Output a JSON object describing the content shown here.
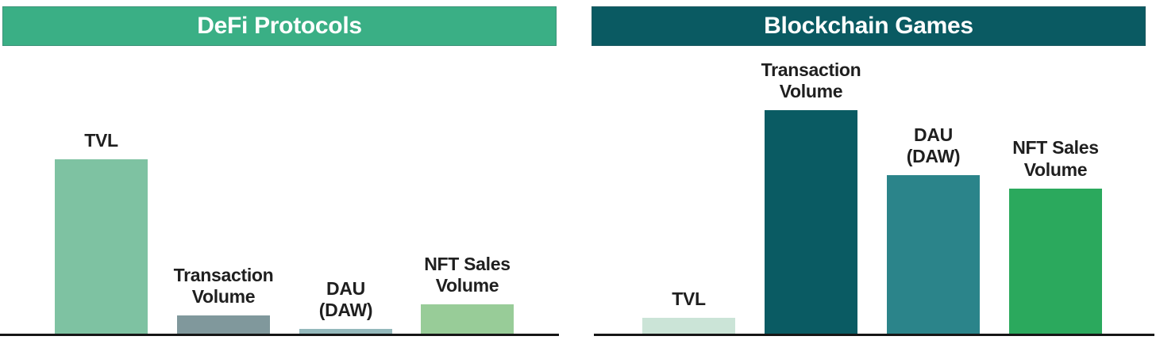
{
  "page": {
    "background": "#ffffff",
    "axis_line_color": "#161616",
    "label_text_color": "#1f1f1f"
  },
  "chart_data": [
    {
      "type": "bar",
      "title": "DeFi Protocols",
      "title_band_bg": "#3AAF85",
      "title_text_color": "#ffffff",
      "categories": [
        "TVL",
        "Transaction\nVolume",
        "DAU\n(DAW)",
        "NFT Sales\nVolume"
      ],
      "values": [
        78,
        8,
        2,
        13
      ],
      "bar_colors": [
        "#7EC2A2",
        "#80989C",
        "#94B9BC",
        "#98CC98"
      ],
      "ylim": [
        0,
        100
      ],
      "y_axis_shown": false,
      "grid": false,
      "legend": "none",
      "category_label_position": "above bars",
      "baseline": "solid black x-axis line"
    },
    {
      "type": "bar",
      "title": "Blockchain Games",
      "title_band_bg": "#0A5A62",
      "title_text_color": "#ffffff",
      "categories": [
        "TVL",
        "Transaction\nVolume",
        "DAU\n(DAW)",
        "NFT Sales\nVolume"
      ],
      "values": [
        7,
        100,
        71,
        65
      ],
      "bar_colors": [
        "#CBE4D7",
        "#0A5B63",
        "#2B848A",
        "#2BA95D"
      ],
      "ylim": [
        0,
        100
      ],
      "y_axis_shown": false,
      "grid": false,
      "legend": "none",
      "category_label_position": "above bars",
      "baseline": "solid black x-axis line"
    }
  ]
}
